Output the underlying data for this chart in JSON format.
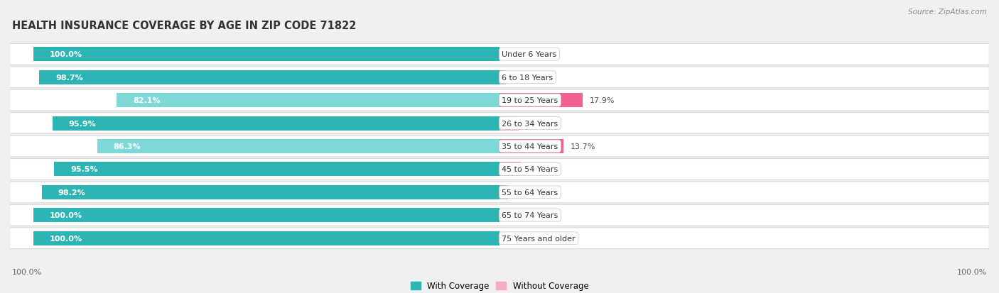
{
  "title": "HEALTH INSURANCE COVERAGE BY AGE IN ZIP CODE 71822",
  "source": "Source: ZipAtlas.com",
  "categories": [
    "Under 6 Years",
    "6 to 18 Years",
    "19 to 25 Years",
    "26 to 34 Years",
    "35 to 44 Years",
    "45 to 54 Years",
    "55 to 64 Years",
    "65 to 74 Years",
    "75 Years and older"
  ],
  "with_coverage": [
    100.0,
    98.7,
    82.1,
    95.9,
    86.3,
    95.5,
    98.2,
    100.0,
    100.0
  ],
  "without_coverage": [
    0.0,
    1.3,
    17.9,
    4.1,
    13.7,
    4.5,
    1.8,
    0.0,
    0.0
  ],
  "color_with_dark": "#2db5b5",
  "color_with_light": "#7fd8d8",
  "color_without_dark": "#f06090",
  "color_without_light": "#f4aac8",
  "background_color": "#f0f0f0",
  "row_bg_color": "#e8e8e8",
  "bar_row_color": "#ffffff",
  "title_fontsize": 10.5,
  "label_fontsize": 8.0,
  "cat_fontsize": 8.0,
  "bar_height": 0.62,
  "legend_label_with": "With Coverage",
  "legend_label_without": "Without Coverage",
  "light_threshold": 90.0
}
